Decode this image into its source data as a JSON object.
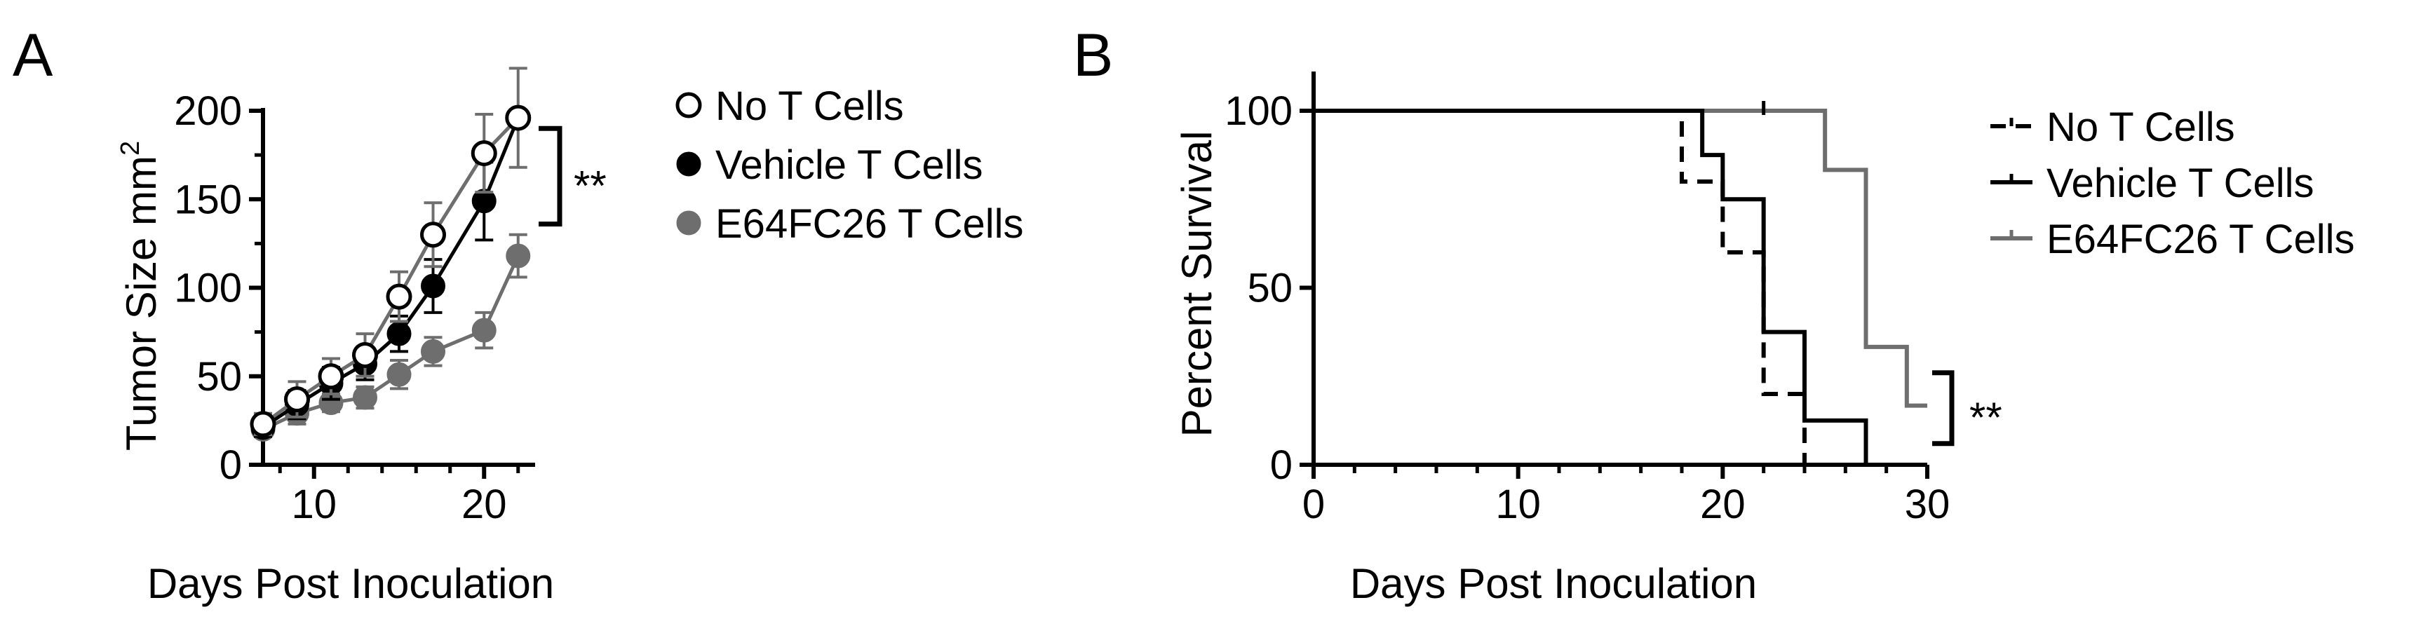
{
  "colors": {
    "black": "#000000",
    "gray": "#6e6e6e",
    "white": "#ffffff"
  },
  "chart_data": [
    {
      "panel_label": "A",
      "type": "line",
      "xlabel": "Days Post Inoculation",
      "ylabel": "Tumor Size mm",
      "ylabel_sup": "2",
      "xlim": [
        7,
        23
      ],
      "ylim": [
        0,
        200
      ],
      "xticks": [
        10,
        20
      ],
      "yticks": [
        0,
        50,
        100,
        150,
        200
      ],
      "legend_position": "right",
      "significance": "**",
      "series": [
        {
          "name": "No T Cells",
          "marker": "open-circle",
          "color": "#000000",
          "line_color": "#6e6e6e",
          "x": [
            7,
            9,
            11,
            13,
            15,
            17,
            20,
            22
          ],
          "y": [
            23,
            37,
            50,
            62,
            95,
            130,
            176,
            196
          ],
          "err": [
            6,
            10,
            10,
            12,
            14,
            18,
            22,
            28
          ]
        },
        {
          "name": "Vehicle T Cells",
          "marker": "filled-circle",
          "color": "#000000",
          "line_color": "#000000",
          "x": [
            7,
            9,
            11,
            13,
            15,
            17,
            20,
            22
          ],
          "y": [
            21,
            34,
            46,
            57,
            74,
            101,
            149,
            196
          ],
          "err": [
            5,
            8,
            9,
            9,
            10,
            15,
            22,
            0
          ]
        },
        {
          "name": "E64FC26 T Cells",
          "marker": "gray-circle",
          "color": "#6e6e6e",
          "line_color": "#6e6e6e",
          "x": [
            7,
            9,
            11,
            13,
            15,
            17,
            20,
            22
          ],
          "y": [
            20,
            29,
            35,
            38,
            51,
            64,
            76,
            118
          ],
          "err": [
            4,
            6,
            5,
            6,
            8,
            8,
            10,
            12
          ]
        }
      ]
    },
    {
      "panel_label": "B",
      "type": "line",
      "subtype": "survival-step",
      "xlabel": "Days Post Inoculation",
      "ylabel": "Percent Survival",
      "xlim": [
        0,
        30
      ],
      "ylim": [
        0,
        100
      ],
      "xticks": [
        0,
        10,
        20,
        30
      ],
      "yticks": [
        0,
        50,
        100
      ],
      "legend_position": "top-right",
      "significance": "**",
      "series": [
        {
          "name": "No T Cells",
          "style": "dashed",
          "color": "#000000",
          "x": [
            0,
            18,
            20,
            22,
            24
          ],
          "y": [
            100,
            80,
            60,
            20,
            0
          ]
        },
        {
          "name": "Vehicle T Cells",
          "style": "solid",
          "color": "#000000",
          "x": [
            0,
            19,
            20,
            22,
            24,
            27
          ],
          "y": [
            100,
            87.5,
            75,
            37.5,
            12.5,
            0
          ]
        },
        {
          "name": "E64FC26 T Cells",
          "style": "solid",
          "color": "#6e6e6e",
          "x": [
            0,
            25,
            27,
            29,
            30
          ],
          "y": [
            100,
            83.3,
            33.3,
            16.7,
            16.7
          ]
        }
      ]
    }
  ]
}
